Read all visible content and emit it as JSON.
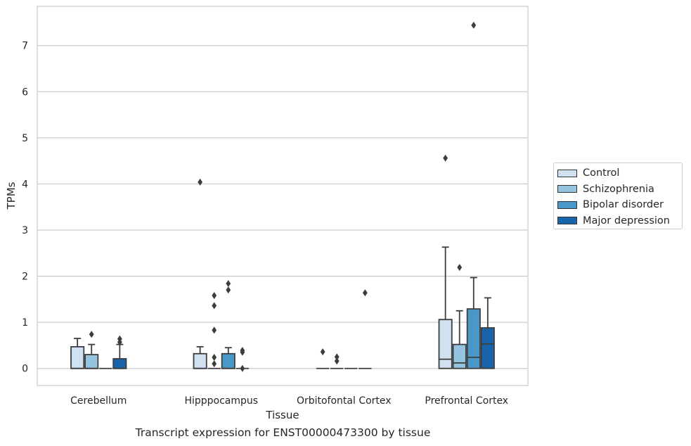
{
  "chart_data": {
    "type": "box",
    "xlabel": "Tissue",
    "ylabel": "TPMs",
    "caption": "Transcript expression for ENST00000473300 by tissue",
    "ylim": [
      -0.37,
      7.85
    ],
    "yticks": [
      0,
      1,
      2,
      3,
      4,
      5,
      6,
      7
    ],
    "grid": "horizontal",
    "legend_position": "right",
    "categories": [
      "Cerebellum",
      "Hipppocampus",
      "Orbitofontal Cortex",
      "Prefrontal Cortex"
    ],
    "series": [
      {
        "name": "Control",
        "color": "#d0e1f2",
        "boxes": [
          {
            "q1": 0,
            "median": 0,
            "q3": 0.47,
            "whisker_low": 0,
            "whisker_high": 0.65,
            "outliers": []
          },
          {
            "q1": 0,
            "median": 0,
            "q3": 0.32,
            "whisker_low": 0,
            "whisker_high": 0.47,
            "outliers": [
              4.04
            ]
          },
          {
            "q1": 0,
            "median": 0,
            "q3": 0,
            "whisker_low": 0,
            "whisker_high": 0,
            "outliers": [
              0.36
            ]
          },
          {
            "q1": 0,
            "median": 0.2,
            "q3": 1.06,
            "whisker_low": 0,
            "whisker_high": 2.63,
            "outliers": [
              4.56
            ]
          }
        ]
      },
      {
        "name": "Schizophrenia",
        "color": "#94c4df",
        "boxes": [
          {
            "q1": 0,
            "median": 0,
            "q3": 0.3,
            "whisker_low": 0,
            "whisker_high": 0.52,
            "outliers": [
              0.74
            ]
          },
          {
            "q1": 0,
            "median": 0,
            "q3": 0,
            "whisker_low": 0,
            "whisker_high": 0,
            "outliers": [
              0.1,
              0.24,
              0.83,
              1.36,
              1.58
            ]
          },
          {
            "q1": 0,
            "median": 0,
            "q3": 0,
            "whisker_low": 0,
            "whisker_high": 0,
            "outliers": [
              0.16,
              0.25
            ]
          },
          {
            "q1": 0,
            "median": 0.12,
            "q3": 0.52,
            "whisker_low": 0,
            "whisker_high": 1.25,
            "outliers": [
              2.19
            ]
          }
        ]
      },
      {
        "name": "Bipolar disorder",
        "color": "#4a98c9",
        "boxes": [
          {
            "q1": 0,
            "median": 0,
            "q3": 0,
            "whisker_low": 0,
            "whisker_high": 0,
            "outliers": []
          },
          {
            "q1": 0,
            "median": 0,
            "q3": 0.32,
            "whisker_low": 0,
            "whisker_high": 0.45,
            "outliers": [
              1.7,
              1.84
            ]
          },
          {
            "q1": 0,
            "median": 0,
            "q3": 0,
            "whisker_low": 0,
            "whisker_high": 0,
            "outliers": []
          },
          {
            "q1": 0,
            "median": 0.24,
            "q3": 1.29,
            "whisker_low": 0,
            "whisker_high": 1.97,
            "outliers": [
              7.44
            ]
          }
        ]
      },
      {
        "name": "Major depression",
        "color": "#1764ab",
        "boxes": [
          {
            "q1": 0,
            "median": 0,
            "q3": 0.21,
            "whisker_low": 0,
            "whisker_high": 0.52,
            "outliers": [
              0.57,
              0.64
            ]
          },
          {
            "q1": 0,
            "median": 0,
            "q3": 0,
            "whisker_low": 0,
            "whisker_high": 0,
            "outliers": [
              0.0,
              0.35,
              0.39
            ]
          },
          {
            "q1": 0,
            "median": 0,
            "q3": 0,
            "whisker_low": 0,
            "whisker_high": 0,
            "outliers": [
              1.64
            ]
          },
          {
            "q1": 0,
            "median": 0.53,
            "q3": 0.88,
            "whisker_low": 0,
            "whisker_high": 1.53,
            "outliers": []
          }
        ]
      }
    ]
  }
}
